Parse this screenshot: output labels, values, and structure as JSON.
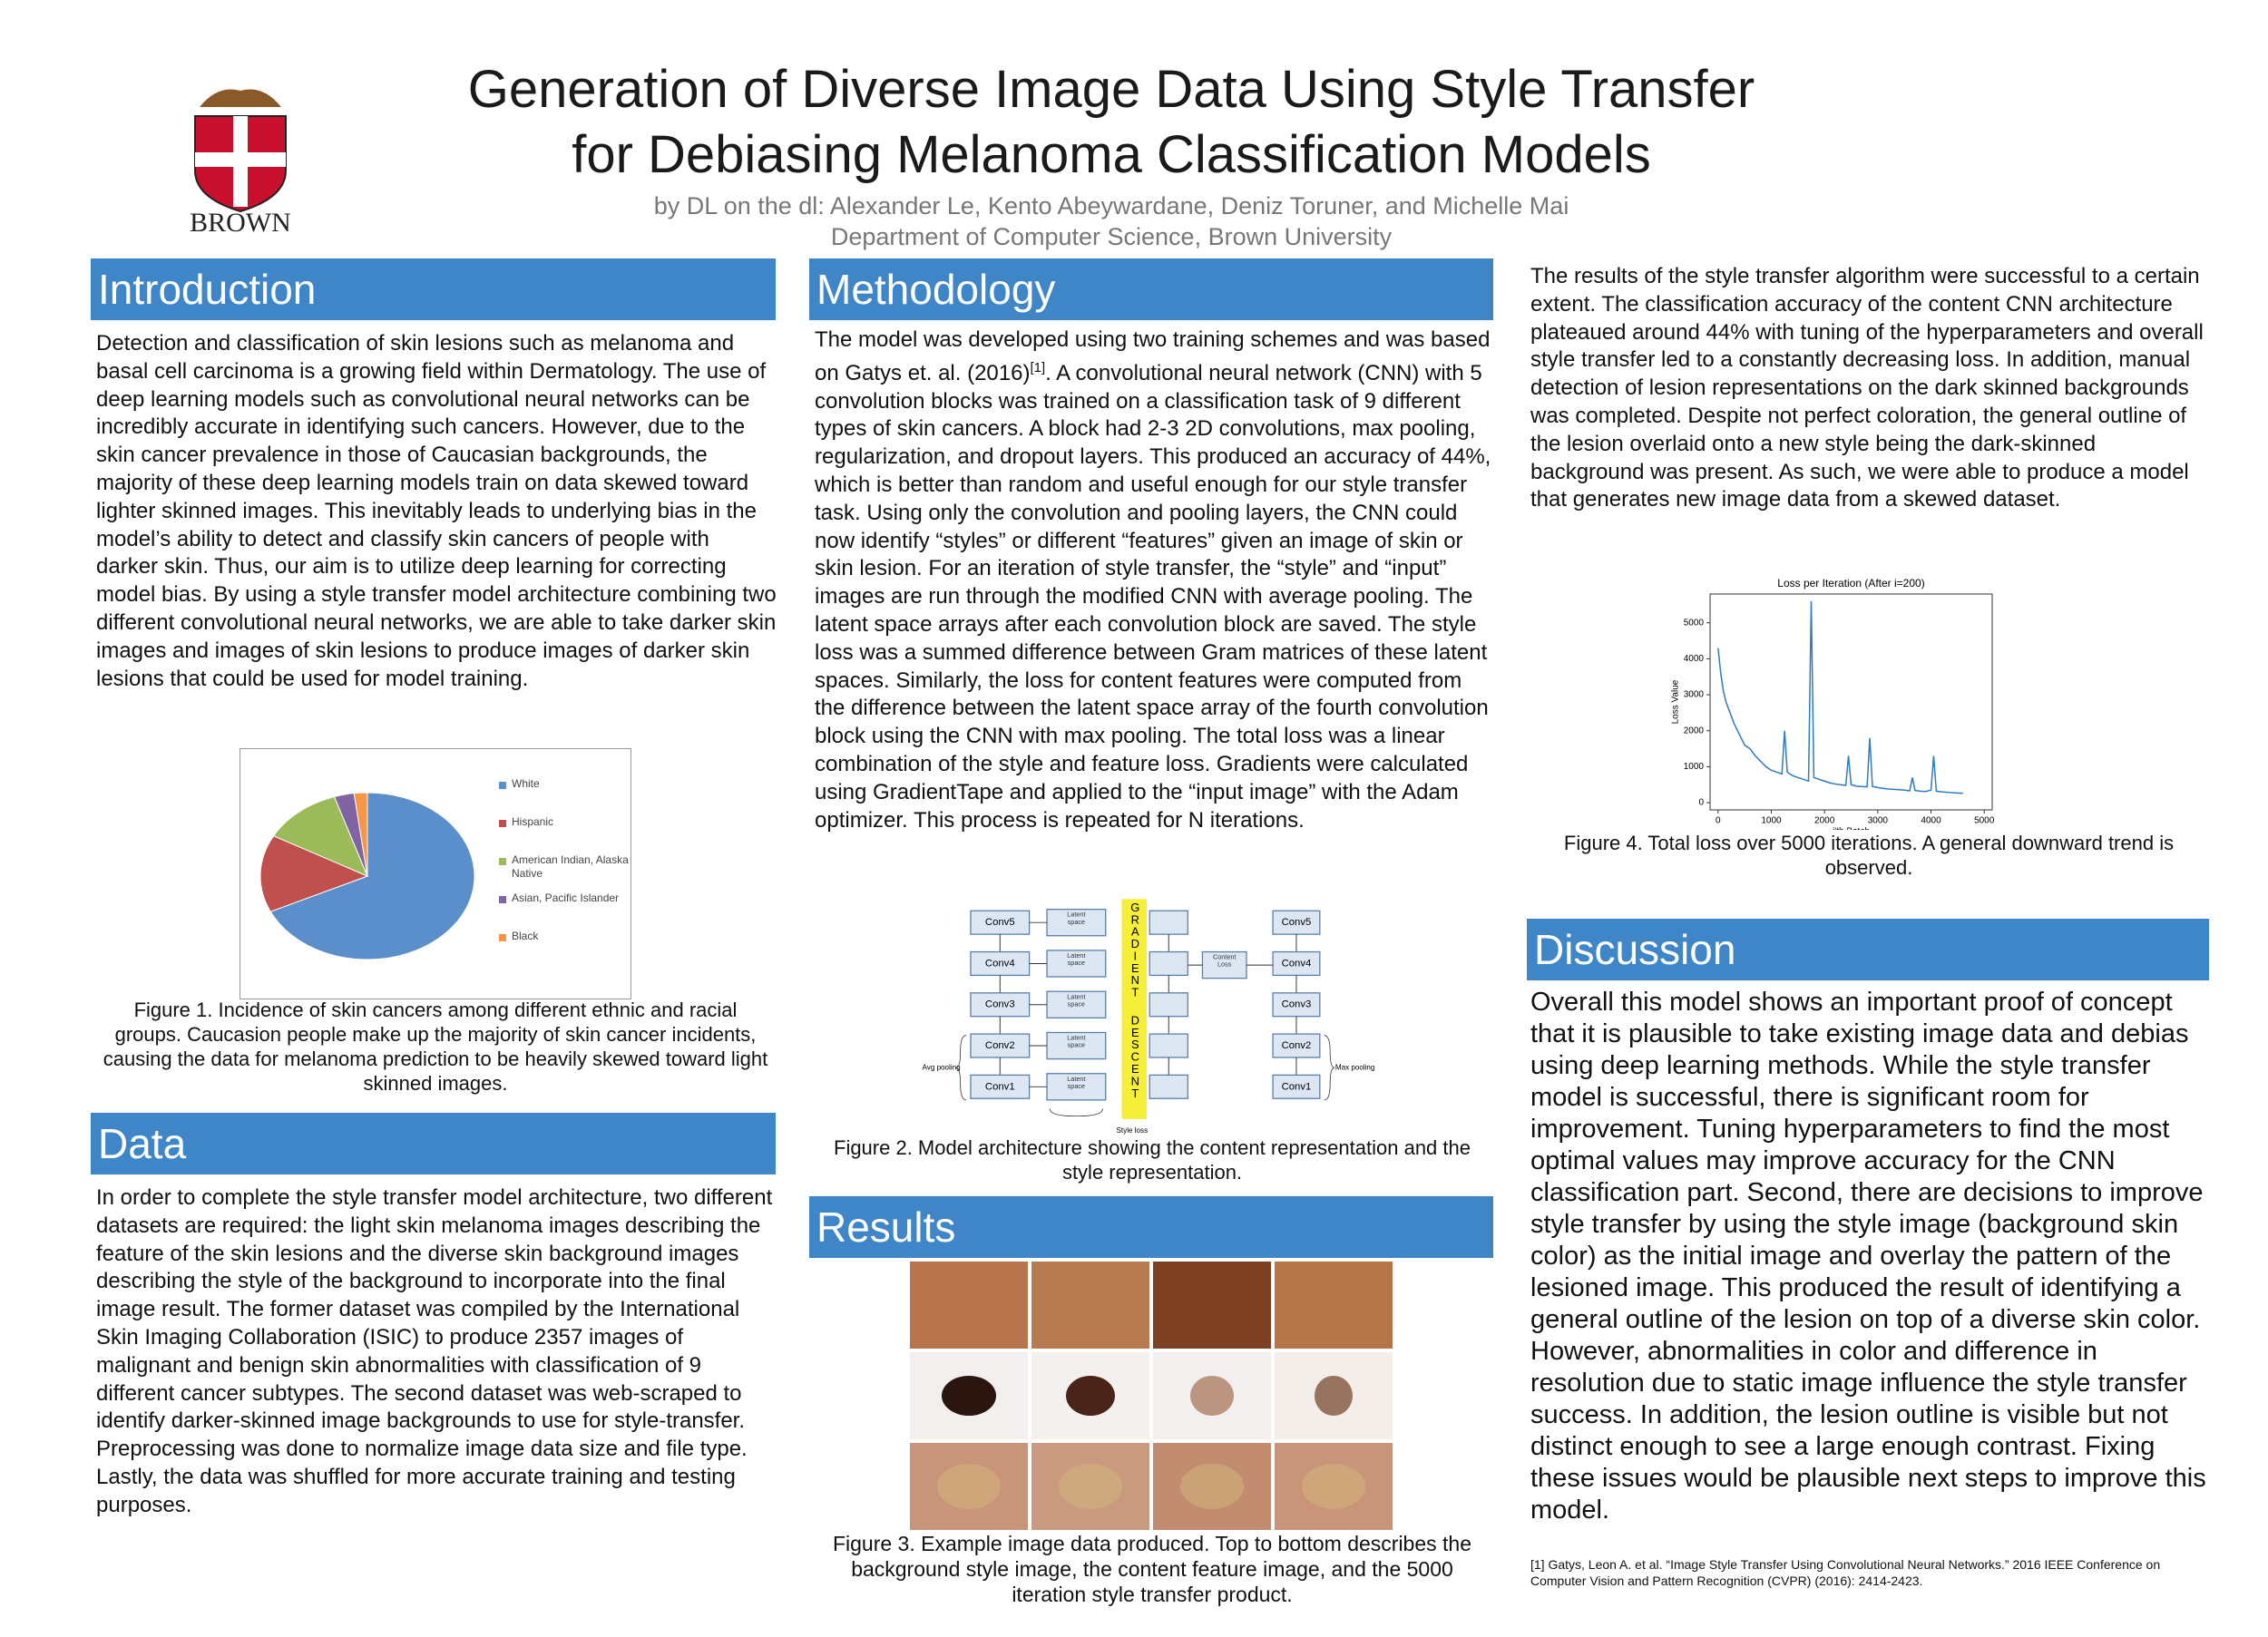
{
  "header": {
    "title_line1": "Generation of Diverse Image Data Using Style Transfer",
    "title_line2": "for Debiasing Melanoma Classification Models",
    "authors": "by DL on the dl: Alexander Le, Kento Abeywardane, Deniz Toruner, and Michelle Mai",
    "affiliation": "Department of Computer Science, Brown University",
    "logo_text": "BROWN"
  },
  "introduction": {
    "heading": "Introduction",
    "text": "Detection and classification of skin lesions such as melanoma and basal cell carcinoma is a growing field within Dermatology. The use of deep learning models such as convolutional neural networks can be incredibly accurate in identifying such cancers. However, due to the skin cancer prevalence in those of Caucasian backgrounds, the majority of these deep learning models train on data skewed toward lighter skinned images. This inevitably leads to underlying bias in the model’s ability to detect and classify skin cancers of people with darker skin. Thus, our aim is to utilize deep learning for correcting model bias. By using a style transfer model architecture combining two different convolutional neural networks, we are able to take darker skin images and images of skin lesions to produce images of darker skin lesions that could be used for model training.",
    "figure_caption": "Figure 1. Incidence of skin cancers among different ethnic and racial groups. Caucasion people  make up the majority of skin cancer incidents, causing the data for melanoma prediction to be heavily skewed toward light skinned images."
  },
  "data_section": {
    "heading": "Data",
    "text": "In order to complete the style transfer model architecture, two different datasets are required: the light skin melanoma images describing the feature of the skin lesions and the diverse skin background images describing the style of the background to incorporate into the final image result. The former dataset was compiled by the International Skin Imaging Collaboration (ISIC) to produce 2357 images of malignant and benign skin abnormalities with classification of 9 different cancer subtypes. The second dataset was web-scraped to identify darker-skinned image backgrounds to use for style-transfer. Preprocessing was done to normalize image data size and file type. Lastly, the data was shuffled for more accurate training and testing purposes."
  },
  "methodology": {
    "heading": "Methodology",
    "text_before_ref": "The model was developed using two training schemes and was based on Gatys et. al. (2016)",
    "ref": "[1]",
    "text_after_ref": ". A convolutional neural network (CNN) with 5 convolution blocks was trained on a classification task of 9 different types of skin cancers. A block had 2-3 2D convolutions, max pooling, regularization, and dropout layers. This produced an accuracy of 44%, which is better than random and useful enough for our style transfer task. Using only the convolution and pooling layers, the CNN could now identify “styles” or  different “features” given an image of skin or skin lesion. For an iteration of style transfer, the “style” and “input” images are run through the modified CNN with average pooling. The latent space arrays after each convolution block are saved. The style loss was a summed difference between Gram matrices of these latent spaces. Similarly, the loss for content features were computed from the difference between the latent space array of the fourth convolution block using the CNN with max pooling. The total loss was a linear combination of the style and feature loss. Gradients were calculated using GradientTape and applied to the “input image” with the Adam optimizer. This process is repeated for N iterations.",
    "diagram": {
      "conv_left": [
        "Conv5",
        "Conv4",
        "Conv3",
        "Conv2",
        "Conv1"
      ],
      "conv_right": [
        "Conv5",
        "Conv4",
        "Conv3",
        "Conv2",
        "Conv1"
      ],
      "latent": "Latent space",
      "gradient": "GRADIENT",
      "descent": "DESCENT",
      "content_loss": "Content Loss",
      "avg_pooling": "Avg pooling",
      "max_pooling": "Max pooling",
      "style_loss": "Style loss"
    },
    "figure_caption": "Figure 2. Model architecture showing the content representation and the style representation."
  },
  "results": {
    "heading": "Results",
    "figure_caption": "Figure 3. Example image data produced. Top to bottom describes the background style image, the content feature image, and the 5000 iteration style transfer product.",
    "text": "The results of the style transfer algorithm were successful to a certain extent. The classification accuracy of the content CNN architecture plateaued around 44% with tuning of the hyperparameters and overall style transfer led to a constantly decreasing loss. In addition, manual detection of lesion representations on the dark skinned backgrounds was completed. Despite not perfect coloration, the general outline of the lesion overlaid onto a new style being the dark-skinned background was present. As such, we were able to produce a model that generates new image data from a skewed dataset.",
    "loss_caption": "Figure 4. Total loss over 5000 iterations. A general downward trend is observed."
  },
  "discussion": {
    "heading": "Discussion",
    "text": "Overall this model shows an important proof of concept that it is plausible to take existing image data and debias using deep learning methods. While the style transfer model is successful, there is significant room for improvement. Tuning hyperparameters to find the most optimal values may improve accuracy for the CNN classification part. Second, there are decisions to improve style transfer by using the style image (background skin color) as the initial image and overlay the pattern of the lesioned image. This produced the result of identifying a general outline of the lesion on top of a diverse skin color. However, abnormalities in color and difference in resolution due to static image influence the style transfer success. In addition, the lesion outline is visible but not distinct enough to see a large enough contrast. Fixing these issues would be plausible next steps to improve this model.",
    "reference": "[1] Gatys, Leon A. et al. “Image Style Transfer Using Convolutional Neural Networks.” 2016 IEEE Conference on Computer Vision and Pattern Recognition (CVPR) (2016): 2414-2423."
  },
  "chart_data": [
    {
      "type": "pie",
      "categories": [
        "White",
        "Hispanic",
        "American Indian, Alaska Native",
        "Asian, Pacific Islander",
        "Black"
      ],
      "values": [
        68,
        15,
        12,
        3,
        2
      ],
      "colors": [
        "#5b8fcb",
        "#c0504d",
        "#9bbb59",
        "#8064a2",
        "#f79646"
      ],
      "legend": "right"
    },
    {
      "type": "line",
      "title": "Loss per Iteration (After i=200)",
      "xlabel": "i'th Batch",
      "ylabel": "Loss Value",
      "x": [
        0,
        50,
        100,
        150,
        200,
        300,
        400,
        500,
        600,
        700,
        800,
        900,
        1000,
        1100,
        1200,
        1250,
        1300,
        1400,
        1500,
        1600,
        1700,
        1750,
        1800,
        1900,
        2000,
        2100,
        2200,
        2300,
        2400,
        2450,
        2500,
        2600,
        2700,
        2800,
        2850,
        2900,
        3000,
        3100,
        3200,
        3300,
        3400,
        3500,
        3600,
        3650,
        3700,
        3800,
        3900,
        4000,
        4050,
        4100,
        4200,
        4300,
        4400,
        4500,
        4600
      ],
      "values": [
        4300,
        3600,
        3100,
        2800,
        2600,
        2200,
        1900,
        1600,
        1500,
        1300,
        1150,
        1000,
        900,
        850,
        800,
        2000,
        850,
        750,
        700,
        650,
        600,
        5600,
        700,
        650,
        600,
        550,
        520,
        500,
        480,
        1300,
        500,
        460,
        450,
        440,
        1800,
        450,
        420,
        400,
        380,
        370,
        360,
        350,
        330,
        700,
        340,
        320,
        310,
        350,
        1300,
        320,
        300,
        290,
        280,
        270,
        260
      ],
      "color": "#2f7bbf",
      "xlim": [
        -150,
        5150
      ],
      "ylim": [
        -200,
        5800
      ],
      "xticks": [
        0,
        1000,
        2000,
        3000,
        4000,
        5000
      ],
      "yticks": [
        0,
        1000,
        2000,
        3000,
        4000,
        5000
      ]
    }
  ]
}
